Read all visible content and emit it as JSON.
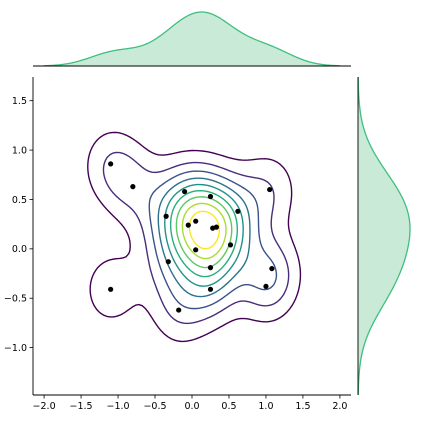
{
  "chart_data": {
    "type": "scatter",
    "subtype": "jointplot-kde",
    "title": "",
    "xlabel": "",
    "ylabel": "",
    "xlim": [
      -2.15,
      2.15
    ],
    "ylim": [
      -1.48,
      1.74
    ],
    "xticks": [
      -2.0,
      -1.5,
      -1.0,
      -0.5,
      0.0,
      0.5,
      1.0,
      1.5,
      2.0
    ],
    "yticks": [
      -1.0,
      -0.5,
      0.0,
      0.5,
      1.0,
      1.5
    ],
    "xtick_labels": [
      "−2.0",
      "−1.5",
      "−1.0",
      "−0.5",
      "0.0",
      "0.5",
      "1.0",
      "1.5",
      "2.0"
    ],
    "ytick_labels": [
      "−1.0",
      "−0.5",
      "0.0",
      "0.5",
      "1.0",
      "1.5"
    ],
    "grid": false,
    "legend": "none",
    "points": [
      {
        "x": -1.1,
        "y": 0.86
      },
      {
        "x": -0.8,
        "y": 0.63
      },
      {
        "x": -0.1,
        "y": 0.58
      },
      {
        "x": 0.25,
        "y": 0.53
      },
      {
        "x": 1.05,
        "y": 0.6
      },
      {
        "x": 0.62,
        "y": 0.38
      },
      {
        "x": -0.35,
        "y": 0.33
      },
      {
        "x": -0.05,
        "y": 0.24
      },
      {
        "x": 0.05,
        "y": 0.28
      },
      {
        "x": 0.28,
        "y": 0.21
      },
      {
        "x": 0.33,
        "y": 0.22
      },
      {
        "x": 0.52,
        "y": 0.04
      },
      {
        "x": 0.05,
        "y": -0.01
      },
      {
        "x": -0.32,
        "y": -0.13
      },
      {
        "x": 0.25,
        "y": -0.19
      },
      {
        "x": 1.08,
        "y": -0.2
      },
      {
        "x": -1.1,
        "y": -0.41
      },
      {
        "x": 0.25,
        "y": -0.41
      },
      {
        "x": 1.0,
        "y": -0.38
      },
      {
        "x": -0.18,
        "y": -0.62
      }
    ],
    "kde_levels": 9,
    "contour_colors": [
      "#440154",
      "#472d7b",
      "#3b528b",
      "#2c728e",
      "#21918c",
      "#28ae80",
      "#5ec962",
      "#addc30",
      "#fde725"
    ],
    "marginal_color": "#3fbf7f",
    "marginal_fill": "#c9ead6"
  }
}
